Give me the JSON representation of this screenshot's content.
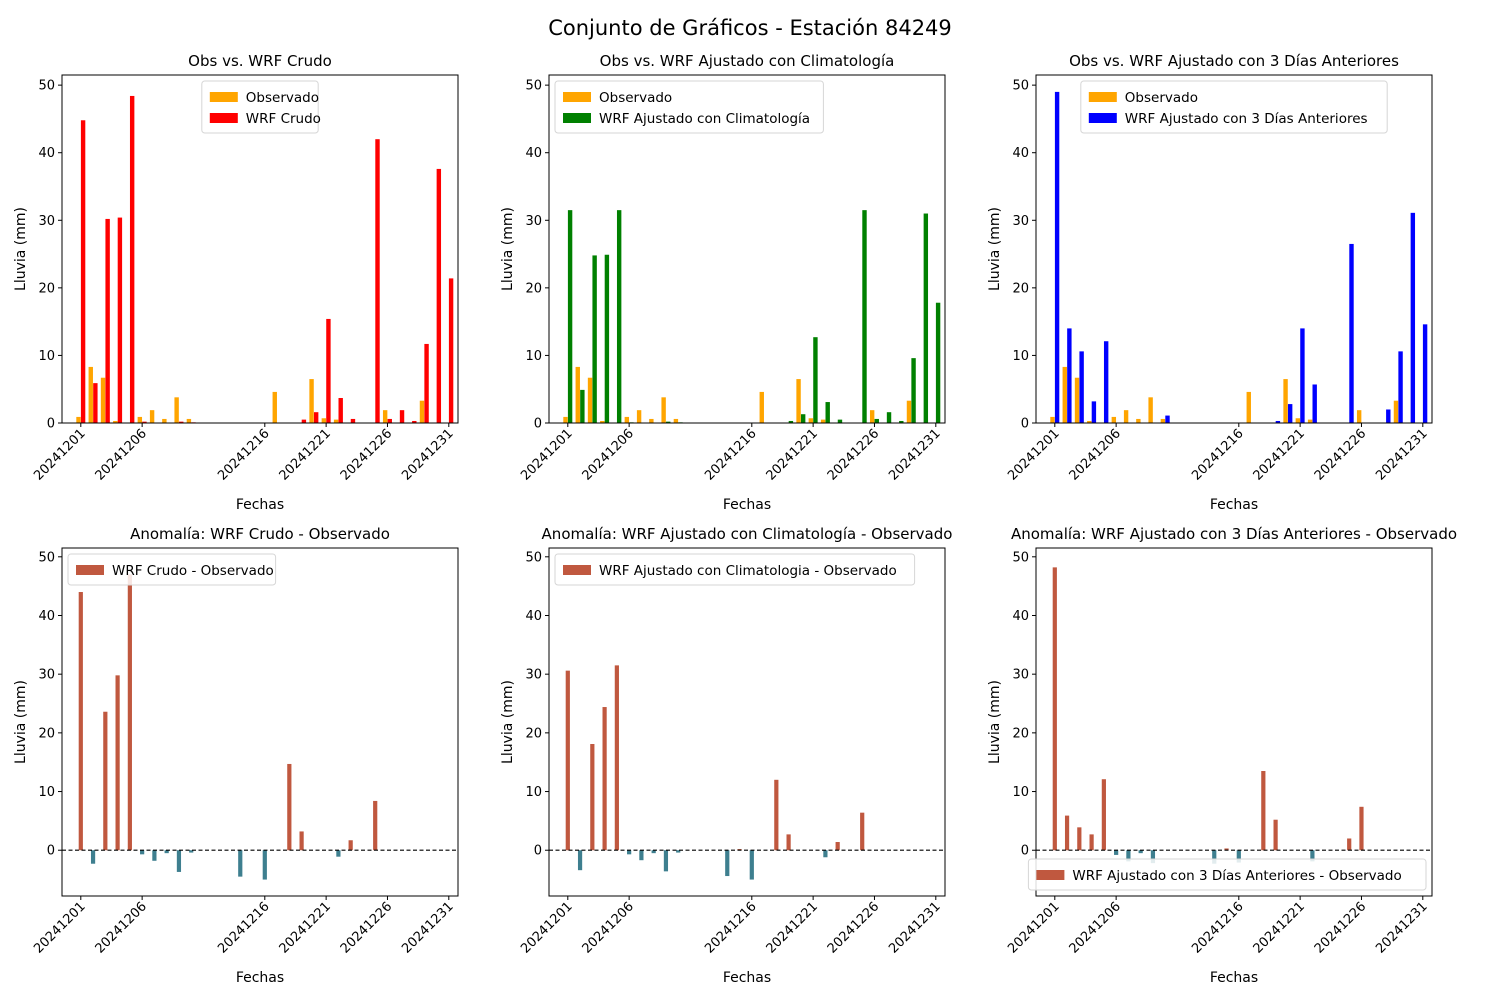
{
  "figure": {
    "title": "Conjunto de Gráficos - Estación 84249",
    "colors": {
      "observed": "#ffa500",
      "raw": "#ff0000",
      "clim": "#008000",
      "prev3": "#0000ff",
      "anom_pos": "#c0583f",
      "anom_neg": "#3e7f8f"
    }
  },
  "chart_data": [
    {
      "type": "bar",
      "title": "Obs vs. WRF Crudo",
      "xlabel": "Fechas",
      "ylabel": "Lluvia (mm)",
      "x": [
        "20241201",
        "20241202",
        "20241203",
        "20241204",
        "20241205",
        "20241206",
        "20241207",
        "20241208",
        "20241209",
        "20241210",
        "20241211",
        "20241212",
        "20241213",
        "20241214",
        "20241215",
        "20241216",
        "20241217",
        "20241218",
        "20241219",
        "20241220",
        "20241221",
        "20241222",
        "20241223",
        "20241224",
        "20241225",
        "20241226",
        "20241227",
        "20241228",
        "20241229",
        "20241230",
        "20241231"
      ],
      "xticks": [
        "20241201",
        "20241206",
        "20241216",
        "20241221",
        "20241226",
        "20241231"
      ],
      "ylim": [
        0,
        51.5
      ],
      "yticks": [
        0,
        10,
        20,
        30,
        40,
        50
      ],
      "legend": "top-center",
      "series": [
        {
          "name": "Observado",
          "color": "#ffa500",
          "values": [
            0.9,
            8.3,
            6.7,
            0.3,
            0,
            0.9,
            1.9,
            0.6,
            3.8,
            0.6,
            0,
            0,
            0,
            0,
            0,
            0,
            4.6,
            0,
            0,
            6.5,
            0.7,
            0.5,
            0,
            0,
            0,
            1.9,
            0,
            0,
            3.3,
            0,
            0
          ]
        },
        {
          "name": "WRF Crudo",
          "color": "#ff0000",
          "values": [
            44.8,
            5.9,
            30.2,
            30.4,
            48.4,
            0.2,
            0,
            0,
            0.2,
            0.1,
            0,
            0,
            0,
            0,
            0,
            0,
            0,
            0,
            0.5,
            1.6,
            15.4,
            3.7,
            0.6,
            0,
            42.0,
            0.6,
            1.9,
            0.3,
            11.7,
            37.6,
            21.4
          ]
        }
      ]
    },
    {
      "type": "bar",
      "title": "Obs vs. WRF Ajustado con Climatología",
      "xlabel": "Fechas",
      "ylabel": "Lluvia (mm)",
      "x": [
        "20241201",
        "20241202",
        "20241203",
        "20241204",
        "20241205",
        "20241206",
        "20241207",
        "20241208",
        "20241209",
        "20241210",
        "20241211",
        "20241212",
        "20241213",
        "20241214",
        "20241215",
        "20241216",
        "20241217",
        "20241218",
        "20241219",
        "20241220",
        "20241221",
        "20241222",
        "20241223",
        "20241224",
        "20241225",
        "20241226",
        "20241227",
        "20241228",
        "20241229",
        "20241230",
        "20241231"
      ],
      "xticks": [
        "20241201",
        "20241206",
        "20241216",
        "20241221",
        "20241226",
        "20241231"
      ],
      "ylim": [
        0,
        51.5
      ],
      "yticks": [
        0,
        10,
        20,
        30,
        40,
        50
      ],
      "legend": "top-left",
      "series": [
        {
          "name": "Observado",
          "color": "#ffa500",
          "values": [
            0.9,
            8.3,
            6.7,
            0.3,
            0,
            0.9,
            1.9,
            0.6,
            3.8,
            0.6,
            0,
            0,
            0,
            0,
            0,
            0,
            4.6,
            0,
            0,
            6.5,
            0.7,
            0.5,
            0,
            0,
            0,
            1.9,
            0,
            0,
            3.3,
            0,
            0
          ]
        },
        {
          "name": "WRF Ajustado con Climatología",
          "color": "#008000",
          "values": [
            31.5,
            4.9,
            24.8,
            24.9,
            31.5,
            0.1,
            0,
            0,
            0.2,
            0.1,
            0,
            0,
            0,
            0,
            0,
            0,
            0,
            0,
            0.3,
            1.3,
            12.7,
            3.1,
            0.5,
            0,
            31.5,
            0.6,
            1.6,
            0.3,
            9.6,
            31.0,
            17.8
          ]
        }
      ]
    },
    {
      "type": "bar",
      "title": "Obs vs. WRF Ajustado con 3 Días Anteriores",
      "xlabel": "Fechas",
      "ylabel": "Lluvia (mm)",
      "x": [
        "20241201",
        "20241202",
        "20241203",
        "20241204",
        "20241205",
        "20241206",
        "20241207",
        "20241208",
        "20241209",
        "20241210",
        "20241211",
        "20241212",
        "20241213",
        "20241214",
        "20241215",
        "20241216",
        "20241217",
        "20241218",
        "20241219",
        "20241220",
        "20241221",
        "20241222",
        "20241223",
        "20241224",
        "20241225",
        "20241226",
        "20241227",
        "20241228",
        "20241229",
        "20241230",
        "20241231"
      ],
      "xticks": [
        "20241201",
        "20241206",
        "20241216",
        "20241221",
        "20241226",
        "20241231"
      ],
      "ylim": [
        0,
        51.5
      ],
      "yticks": [
        0,
        10,
        20,
        30,
        40,
        50
      ],
      "legend": "top-center",
      "series": [
        {
          "name": "Observado",
          "color": "#ffa500",
          "values": [
            0.9,
            8.3,
            6.7,
            0.3,
            0,
            0.9,
            1.9,
            0.6,
            3.8,
            0.6,
            0,
            0,
            0,
            0,
            0,
            0,
            4.6,
            0,
            0,
            6.5,
            0.7,
            0.5,
            0,
            0,
            0,
            1.9,
            0,
            0,
            3.3,
            0,
            0
          ]
        },
        {
          "name": "WRF Ajustado con 3 Días Anteriores",
          "color": "#0000ff",
          "values": [
            49.0,
            14.0,
            10.6,
            3.2,
            12.1,
            0,
            0,
            0,
            0,
            1.1,
            0,
            0,
            0,
            0,
            0,
            0,
            0,
            0,
            0.3,
            2.8,
            14.0,
            5.7,
            0,
            0,
            26.5,
            0,
            0,
            2.0,
            10.6,
            31.1,
            14.6
          ]
        }
      ]
    },
    {
      "type": "bar",
      "title": "Anomalía: WRF Crudo - Observado",
      "xlabel": "Fechas",
      "ylabel": "Lluvia (mm)",
      "x": [
        "20241201",
        "20241202",
        "20241203",
        "20241204",
        "20241205",
        "20241206",
        "20241207",
        "20241208",
        "20241209",
        "20241210",
        "20241211",
        "20241212",
        "20241213",
        "20241214",
        "20241215",
        "20241216",
        "20241217",
        "20241218",
        "20241219",
        "20241220",
        "20241221",
        "20241222",
        "20241223",
        "20241224",
        "20241225",
        "20241226",
        "20241227",
        "20241228",
        "20241229",
        "20241230",
        "20241231"
      ],
      "xticks": [
        "20241201",
        "20241206",
        "20241216",
        "20241221",
        "20241226",
        "20241231"
      ],
      "ylim": [
        -7.8,
        51.5
      ],
      "yticks": [
        0,
        10,
        20,
        30,
        40,
        50
      ],
      "legend": "top-left",
      "zero_line": true,
      "series": [
        {
          "name": "WRF Crudo - Observado",
          "values": [
            44.0,
            -2.3,
            23.6,
            29.8,
            47.0,
            -0.7,
            -1.8,
            -0.5,
            -3.7,
            -0.4,
            0,
            0,
            0,
            -4.5,
            0,
            -5.0,
            0,
            14.7,
            3.2,
            0,
            0,
            -1.1,
            1.7,
            0,
            8.4,
            0,
            0,
            0,
            0,
            0,
            0
          ]
        }
      ]
    },
    {
      "type": "bar",
      "title": "Anomalía: WRF Ajustado con Climatología - Observado",
      "xlabel": "Fechas",
      "ylabel": "Lluvia (mm)",
      "x": [
        "20241201",
        "20241202",
        "20241203",
        "20241204",
        "20241205",
        "20241206",
        "20241207",
        "20241208",
        "20241209",
        "20241210",
        "20241211",
        "20241212",
        "20241213",
        "20241214",
        "20241215",
        "20241216",
        "20241217",
        "20241218",
        "20241219",
        "20241220",
        "20241221",
        "20241222",
        "20241223",
        "20241224",
        "20241225",
        "20241226",
        "20241227",
        "20241228",
        "20241229",
        "20241230",
        "20241231"
      ],
      "xticks": [
        "20241201",
        "20241206",
        "20241216",
        "20241221",
        "20241226",
        "20241231"
      ],
      "ylim": [
        -7.8,
        51.5
      ],
      "yticks": [
        0,
        10,
        20,
        30,
        40,
        50
      ],
      "legend": "top-left",
      "zero_line": true,
      "series": [
        {
          "name": "WRF Ajustado con Climatologia - Observado",
          "values": [
            30.6,
            -3.4,
            18.1,
            24.4,
            31.5,
            -0.7,
            -1.7,
            -0.5,
            -3.6,
            -0.4,
            0,
            0,
            0,
            -4.4,
            0.2,
            -5.0,
            0,
            12.0,
            2.7,
            0,
            0,
            -1.2,
            1.4,
            0,
            6.4,
            0,
            0,
            0,
            0,
            0,
            0
          ]
        }
      ]
    },
    {
      "type": "bar",
      "title": "Anomalía: WRF Ajustado con 3 Días Anteriores - Observado",
      "xlabel": "Fechas",
      "ylabel": "Lluvia (mm)",
      "x": [
        "20241201",
        "20241202",
        "20241203",
        "20241204",
        "20241205",
        "20241206",
        "20241207",
        "20241208",
        "20241209",
        "20241210",
        "20241211",
        "20241212",
        "20241213",
        "20241214",
        "20241215",
        "20241216",
        "20241217",
        "20241218",
        "20241219",
        "20241220",
        "20241221",
        "20241222",
        "20241223",
        "20241224",
        "20241225",
        "20241226",
        "20241227",
        "20241228",
        "20241229",
        "20241230",
        "20241231"
      ],
      "xticks": [
        "20241201",
        "20241206",
        "20241216",
        "20241221",
        "20241226",
        "20241231"
      ],
      "ylim": [
        -7.8,
        51.5
      ],
      "yticks": [
        0,
        10,
        20,
        30,
        40,
        50
      ],
      "legend": "bottom-right",
      "zero_line": true,
      "series": [
        {
          "name": "WRF Ajustado con 3 Días Anteriores - Observado",
          "values": [
            48.2,
            5.9,
            3.9,
            2.7,
            12.1,
            -0.8,
            -1.9,
            -0.5,
            -2.2,
            0,
            0,
            0,
            0,
            -2.3,
            0.3,
            -2.1,
            0,
            13.5,
            5.2,
            0,
            0,
            -1.9,
            0,
            0,
            2.0,
            7.4,
            0,
            0,
            0,
            0,
            0
          ]
        }
      ]
    }
  ]
}
